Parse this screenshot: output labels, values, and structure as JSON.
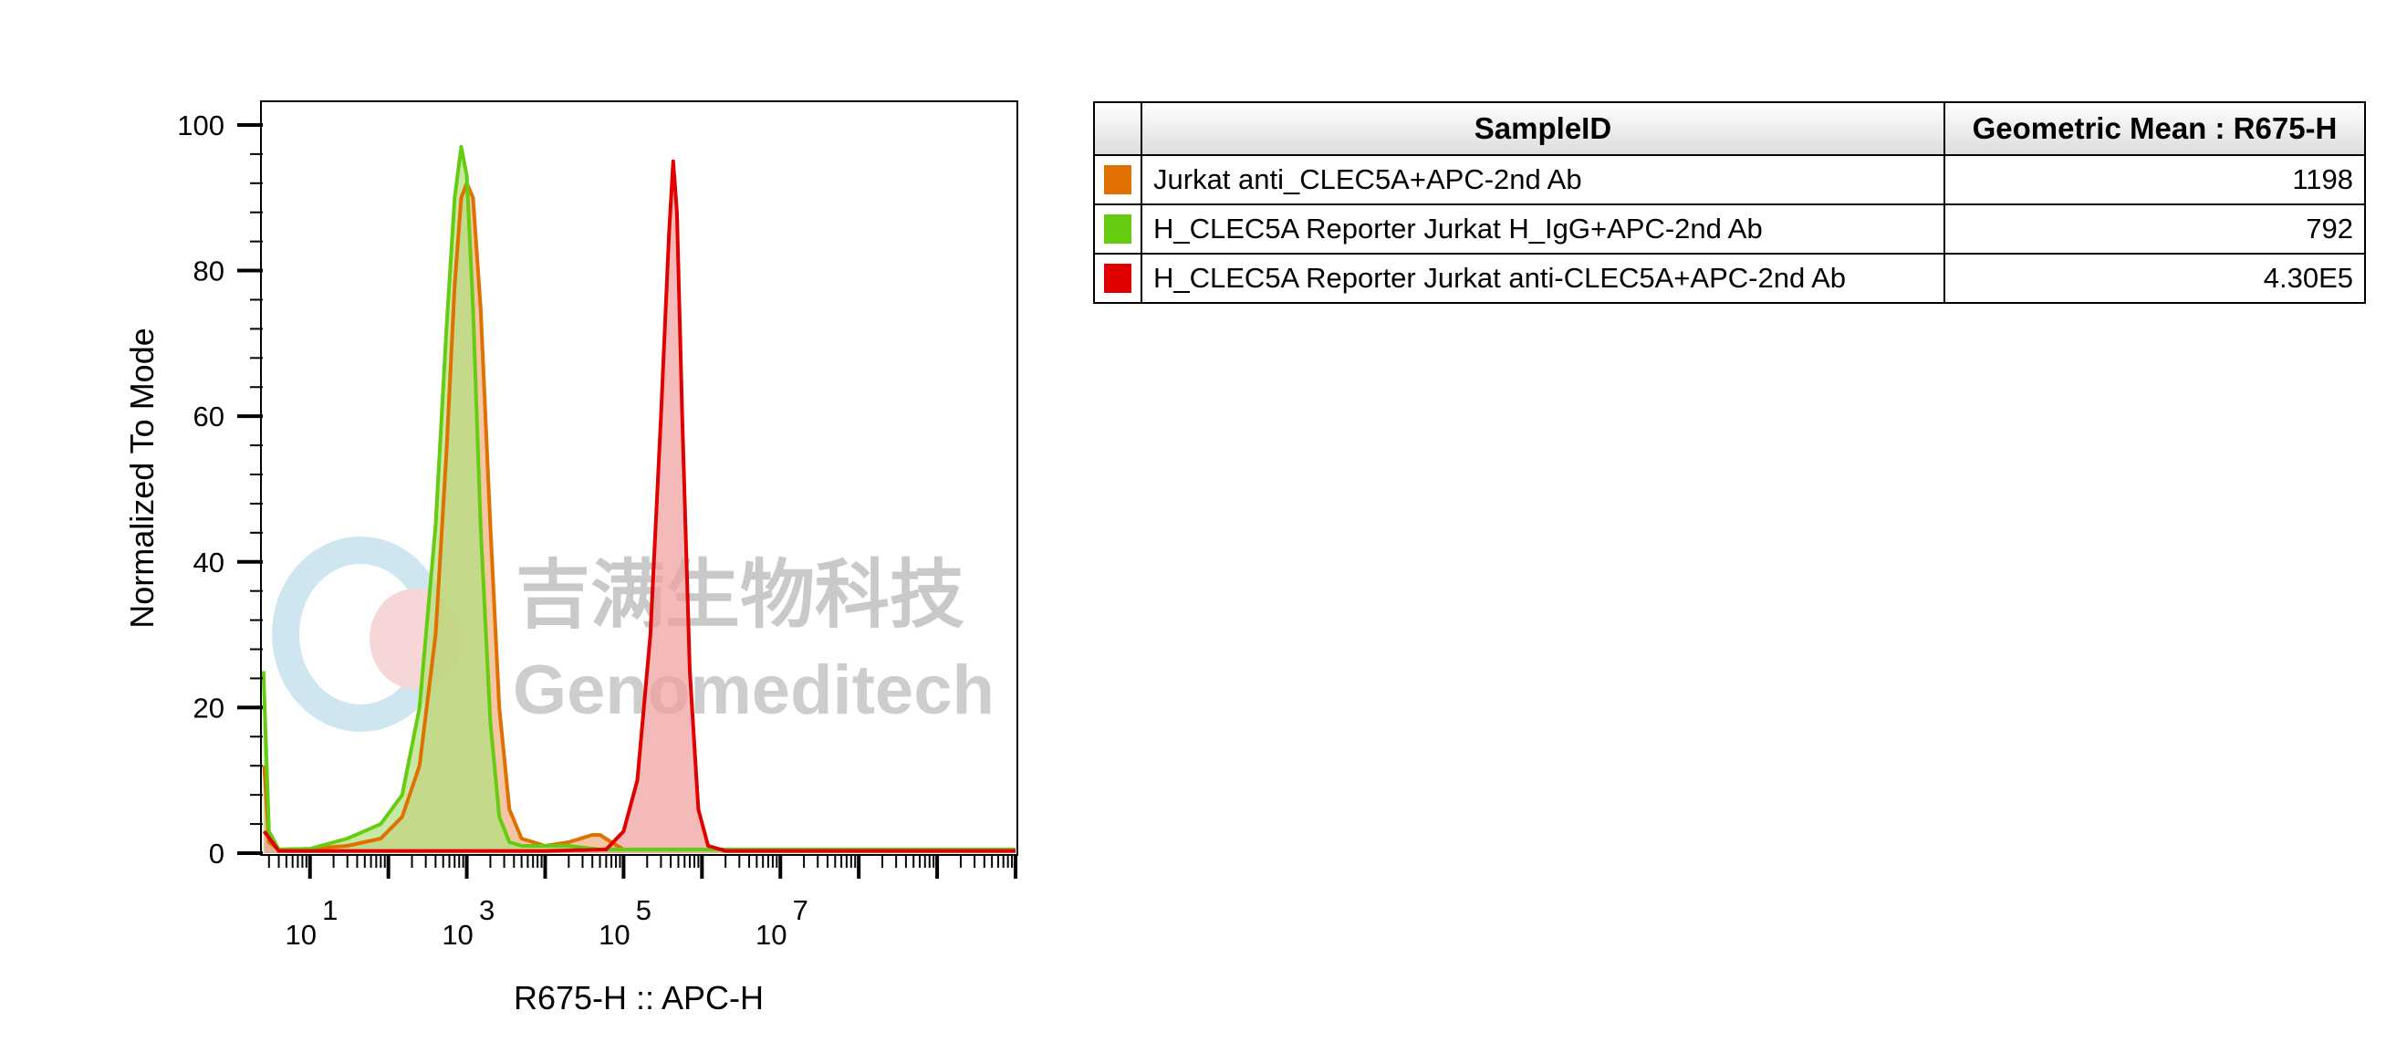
{
  "watermark": {
    "cn": "吉满生物科技",
    "en": "Genomeditech"
  },
  "chart_data": {
    "type": "area",
    "xlabel": "R675-H :: APC-H",
    "ylabel": "Normalized To Mode",
    "x_scale": "log",
    "xlim": [
      2.5,
      10000000000
    ],
    "ylim": [
      0,
      103
    ],
    "y_ticks": [
      0,
      20,
      40,
      60,
      80,
      100
    ],
    "x_ticks": [
      {
        "base": "10",
        "exp": "1",
        "value": 10
      },
      {
        "base": "10",
        "exp": "3",
        "value": 1000
      },
      {
        "base": "10",
        "exp": "5",
        "value": 100000
      },
      {
        "base": "10",
        "exp": "7",
        "value": 10000000
      }
    ],
    "series": [
      {
        "name": "Jurkat anti_CLEC5A+APC-2nd Ab",
        "color": "#e07000",
        "fill": "#f0b080",
        "points": [
          [
            2.6,
            12
          ],
          [
            3,
            1.5
          ],
          [
            4,
            0.5
          ],
          [
            10,
            0.6
          ],
          [
            30,
            1
          ],
          [
            80,
            2
          ],
          [
            150,
            5
          ],
          [
            250,
            12
          ],
          [
            400,
            30
          ],
          [
            550,
            55
          ],
          [
            700,
            78
          ],
          [
            850,
            90
          ],
          [
            1000,
            92
          ],
          [
            1200,
            90
          ],
          [
            1500,
            75
          ],
          [
            2000,
            45
          ],
          [
            2600,
            20
          ],
          [
            3500,
            6
          ],
          [
            5000,
            2
          ],
          [
            10000,
            1
          ],
          [
            20000,
            1.5
          ],
          [
            40000,
            2.5
          ],
          [
            50000,
            2.5
          ],
          [
            70000,
            1.5
          ],
          [
            100000,
            0.5
          ],
          [
            1000000,
            0.5
          ],
          [
            10000000000,
            0.5
          ]
        ]
      },
      {
        "name": "H_CLEC5A Reporter Jurkat H_IgG+APC-2nd Ab",
        "color": "#66cc11",
        "fill": "#b2e080",
        "points": [
          [
            2.55,
            25
          ],
          [
            3,
            3
          ],
          [
            4,
            0.5
          ],
          [
            10,
            0.6
          ],
          [
            30,
            2
          ],
          [
            80,
            4
          ],
          [
            150,
            8
          ],
          [
            250,
            20
          ],
          [
            400,
            45
          ],
          [
            550,
            72
          ],
          [
            700,
            90
          ],
          [
            850,
            97
          ],
          [
            1000,
            93
          ],
          [
            1200,
            75
          ],
          [
            1500,
            45
          ],
          [
            2000,
            18
          ],
          [
            2600,
            5
          ],
          [
            3500,
            1.5
          ],
          [
            5000,
            1
          ],
          [
            20000,
            1
          ],
          [
            50000,
            0.5
          ],
          [
            10000000000,
            0.5
          ]
        ]
      },
      {
        "name": "H_CLEC5A Reporter Jurkat anti-CLEC5A+APC-2nd Ab",
        "color": "#e00000",
        "fill": "#f0a0a0",
        "points": [
          [
            2.6,
            3
          ],
          [
            4,
            0.3
          ],
          [
            10,
            0.3
          ],
          [
            10000,
            0.3
          ],
          [
            60000,
            0.5
          ],
          [
            100000,
            3
          ],
          [
            150000,
            10
          ],
          [
            220000,
            30
          ],
          [
            300000,
            60
          ],
          [
            380000,
            85
          ],
          [
            430000,
            95
          ],
          [
            480000,
            88
          ],
          [
            560000,
            60
          ],
          [
            700000,
            25
          ],
          [
            900000,
            6
          ],
          [
            1200000,
            1
          ],
          [
            2000000,
            0.3
          ],
          [
            10000000000,
            0.3
          ]
        ]
      }
    ],
    "table": {
      "headers": [
        "SampleID",
        "Geometric Mean : R675-H"
      ],
      "rows": [
        {
          "color": "#e07000",
          "sample": "Jurkat anti_CLEC5A+APC-2nd Ab",
          "value": "1198"
        },
        {
          "color": "#66cc11",
          "sample": "H_CLEC5A Reporter Jurkat H_IgG+APC-2nd Ab",
          "value": "792"
        },
        {
          "color": "#e00000",
          "sample": "H_CLEC5A Reporter Jurkat anti-CLEC5A+APC-2nd Ab",
          "value": "4.30E5"
        }
      ]
    }
  }
}
